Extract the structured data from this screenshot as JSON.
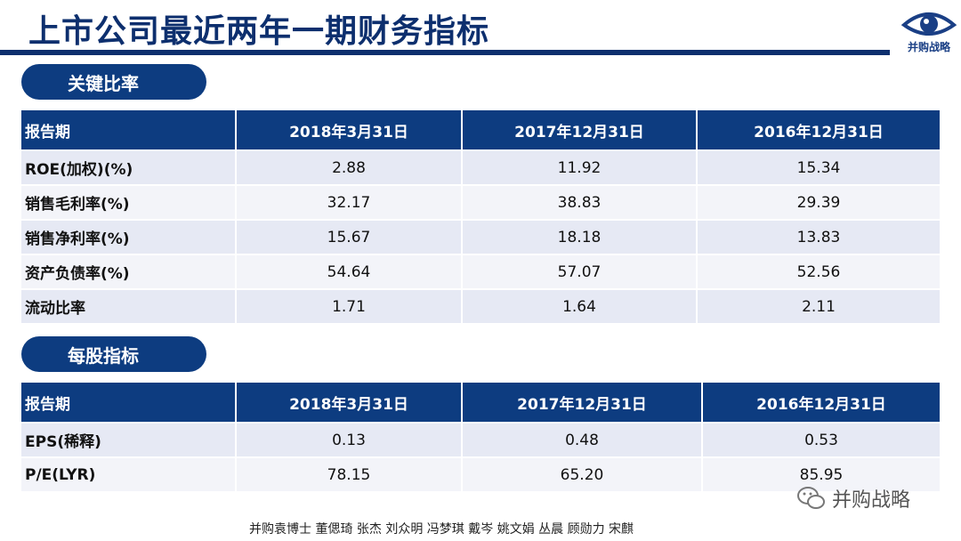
{
  "title": "上市公司最近两年一期财务指标",
  "logo": {
    "text": "并购战略",
    "icon": "eye-icon"
  },
  "sections": [
    {
      "title": "关键比率",
      "columns": [
        "报告期",
        "2018年3月31日",
        "2017年12月31日",
        "2016年12月31日"
      ],
      "rows": [
        [
          "ROE(加权)(%)",
          "2.88",
          "11.92",
          "15.34"
        ],
        [
          "销售毛利率(%)",
          "32.17",
          "38.83",
          "29.39"
        ],
        [
          "销售净利率(%)",
          "15.67",
          "18.18",
          "13.83"
        ],
        [
          "资产负债率(%)",
          "54.64",
          "57.07",
          "52.56"
        ],
        [
          "流动比率",
          "1.71",
          "1.64",
          "2.11"
        ]
      ]
    },
    {
      "title": "每股指标",
      "columns": [
        "报告期",
        "2018年3月31日",
        "2017年12月31日",
        "2016年12月31日"
      ],
      "rows": [
        [
          "EPS(稀释)",
          "0.13",
          "0.48",
          "0.53"
        ],
        [
          "P/E(LYR)",
          "78.15",
          "65.20",
          "85.95"
        ]
      ]
    }
  ],
  "footer": "并购袁博士 董偲琦 张杰 刘众明 冯梦琪 戴岑 姚文娟  丛晨 顾勋力 宋麒",
  "watermark": {
    "text": "并购战略",
    "icon": "wechat-icon"
  },
  "colors": {
    "primary": "#0d3c80",
    "row_odd": "#e6e9f4",
    "row_even": "#f3f4f9"
  }
}
